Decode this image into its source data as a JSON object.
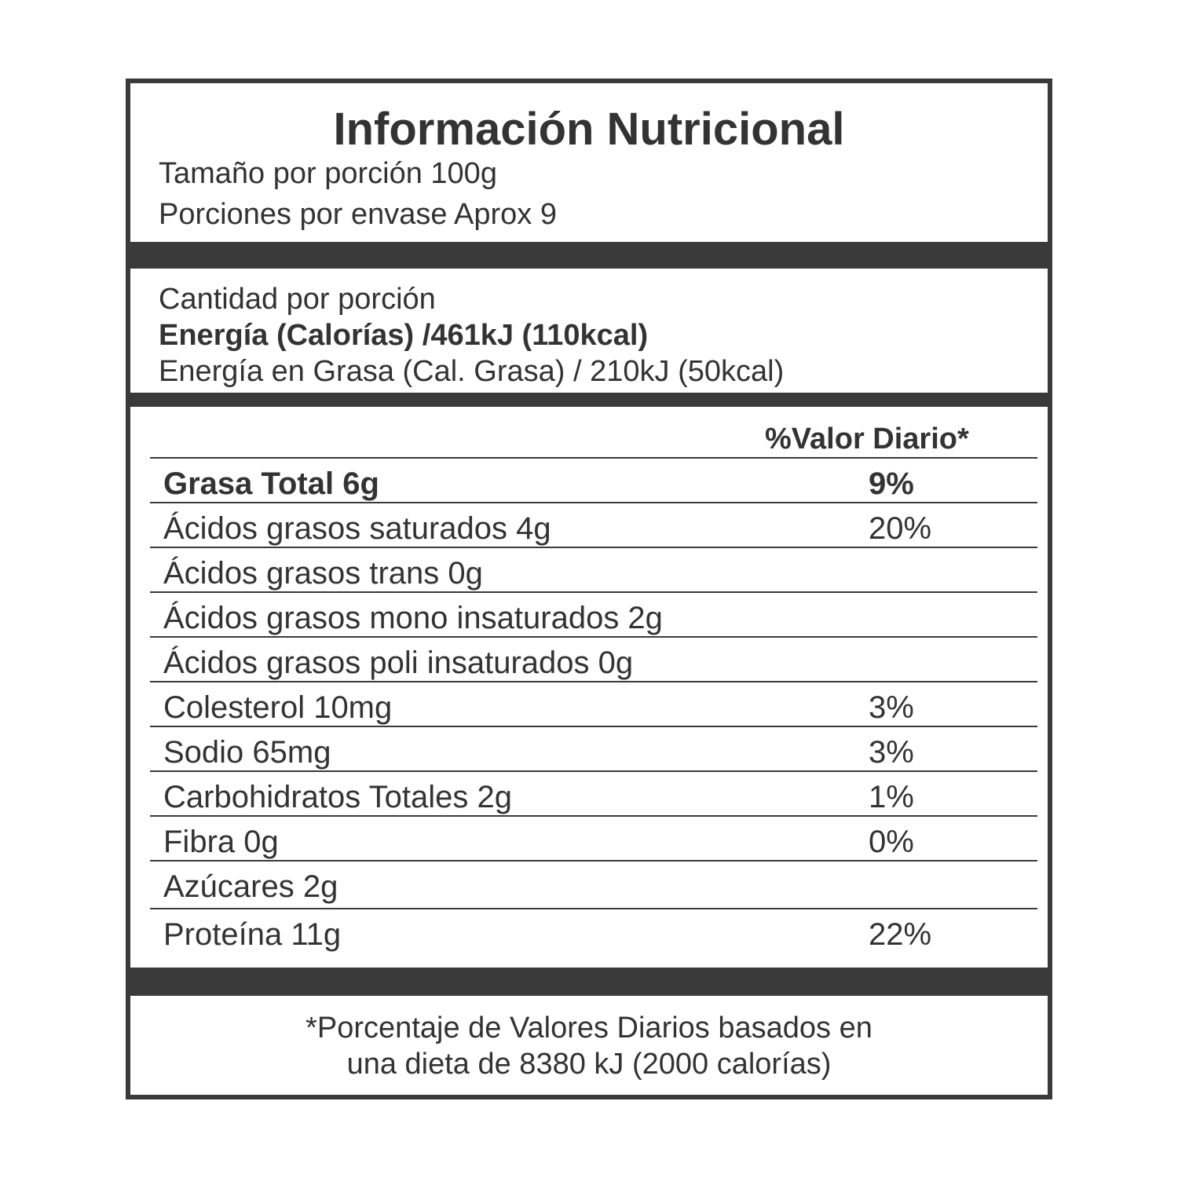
{
  "title": "Información Nutricional",
  "serving_size": "Tamaño por porción 100g",
  "servings_per_container": "Porciones por envase Aprox 9",
  "amount_per_serving": "Cantidad por porción",
  "energy": "Energía (Calorías) /461kJ (110kcal)",
  "energy_fat": "Energía en Grasa (Cal. Grasa) / 210kJ (50kcal)",
  "dv_header": "%Valor Diario*",
  "rows": [
    {
      "name": "Grasa Total  6g",
      "pct": "9%",
      "bold": true
    },
    {
      "name": "Ácidos grasos saturados 4g",
      "pct": "20%"
    },
    {
      "name": "Ácidos grasos trans  0g",
      "pct": ""
    },
    {
      "name": "Ácidos grasos mono insaturados  2g",
      "pct": ""
    },
    {
      "name": "Ácidos grasos poli insaturados  0g",
      "pct": ""
    },
    {
      "name": "Colesterol  10mg",
      "pct": "3%"
    },
    {
      "name": "Sodio  65mg",
      "pct": "3%"
    },
    {
      "name": "Carbohidratos Totales  2g",
      "pct": "1%"
    },
    {
      "name": "Fibra 0g",
      "pct": "0%"
    },
    {
      "name": "Azúcares 2g",
      "pct": ""
    },
    {
      "name": "Proteína 11g",
      "pct": "22%"
    }
  ],
  "footnote_line1": "*Porcentaje de Valores Diarios basados en",
  "footnote_line2": "una dieta de 8380 kJ (2000 calorías)",
  "colors": {
    "ink": "#333333",
    "border": "#3a3a3a"
  }
}
